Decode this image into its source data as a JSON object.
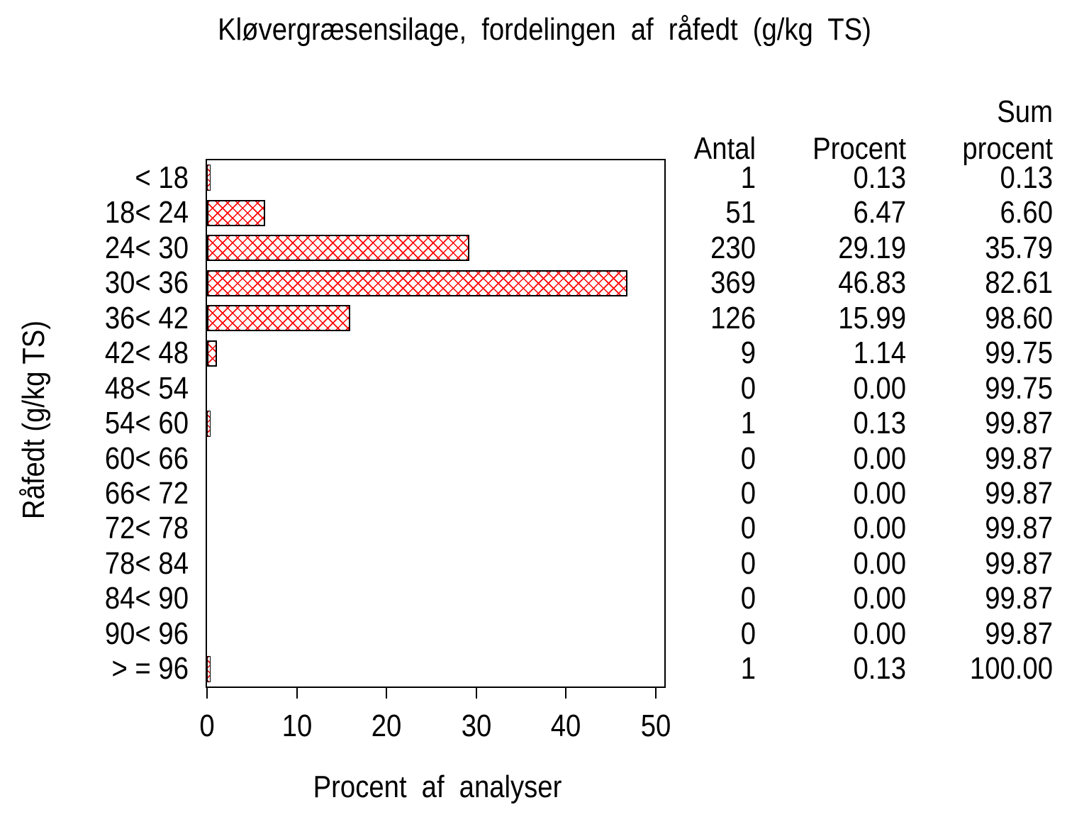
{
  "title": "Kløvergræsensilage,  fordelingen  af  råfedt  (g/kg  TS)",
  "xlabel": "Procent  af  analyser",
  "ylabel": "Råfedt  (g/kg  TS)",
  "table_headers": {
    "antal": "Antal",
    "procent": "Procent",
    "sum_line1": "Sum",
    "sum_line2": "procent"
  },
  "x_tick_labels": [
    "0",
    "10",
    "20",
    "30",
    "40",
    "50"
  ],
  "rows": [
    {
      "label": "< 18",
      "antal": "1",
      "procent": "0.13",
      "sum": "0.13",
      "pct": 0.13
    },
    {
      "label": "18< 24",
      "antal": "51",
      "procent": "6.47",
      "sum": "6.60",
      "pct": 6.47
    },
    {
      "label": "24< 30",
      "antal": "230",
      "procent": "29.19",
      "sum": "35.79",
      "pct": 29.19
    },
    {
      "label": "30< 36",
      "antal": "369",
      "procent": "46.83",
      "sum": "82.61",
      "pct": 46.83
    },
    {
      "label": "36< 42",
      "antal": "126",
      "procent": "15.99",
      "sum": "98.60",
      "pct": 15.99
    },
    {
      "label": "42< 48",
      "antal": "9",
      "procent": "1.14",
      "sum": "99.75",
      "pct": 1.14
    },
    {
      "label": "48< 54",
      "antal": "0",
      "procent": "0.00",
      "sum": "99.75",
      "pct": 0
    },
    {
      "label": "54< 60",
      "antal": "1",
      "procent": "0.13",
      "sum": "99.87",
      "pct": 0.13
    },
    {
      "label": "60< 66",
      "antal": "0",
      "procent": "0.00",
      "sum": "99.87",
      "pct": 0
    },
    {
      "label": "66< 72",
      "antal": "0",
      "procent": "0.00",
      "sum": "99.87",
      "pct": 0
    },
    {
      "label": "72< 78",
      "antal": "0",
      "procent": "0.00",
      "sum": "99.87",
      "pct": 0
    },
    {
      "label": "78< 84",
      "antal": "0",
      "procent": "0.00",
      "sum": "99.87",
      "pct": 0
    },
    {
      "label": "84< 90",
      "antal": "0",
      "procent": "0.00",
      "sum": "99.87",
      "pct": 0
    },
    {
      "label": "90< 96",
      "antal": "0",
      "procent": "0.00",
      "sum": "99.87",
      "pct": 0
    },
    {
      "label": "> = 96",
      "antal": "1",
      "procent": "0.13",
      "sum": "100.00",
      "pct": 0.13
    }
  ],
  "colors": {
    "hatch_red": "#ff0000",
    "frame": "#000000",
    "text": "#000000",
    "background": "#ffffff"
  },
  "chart_data": {
    "type": "bar",
    "orientation": "horizontal",
    "title": "Kløvergræsensilage, fordelingen af råfedt (g/kg TS)",
    "xlabel": "Procent af analyser",
    "ylabel": "Råfedt (g/kg TS)",
    "xlim": [
      0,
      50
    ],
    "x_ticks": [
      0,
      10,
      20,
      30,
      40,
      50
    ],
    "grid": false,
    "legend": false,
    "bar_style": "red diagonal crosshatch, black outline",
    "categories": [
      "< 18",
      "18< 24",
      "24< 30",
      "30< 36",
      "36< 42",
      "42< 48",
      "48< 54",
      "54< 60",
      "60< 66",
      "66< 72",
      "72< 78",
      "78< 84",
      "84< 90",
      "90< 96",
      "> = 96"
    ],
    "bar_values_pct": [
      0.13,
      6.47,
      29.19,
      46.83,
      15.99,
      1.14,
      0.0,
      0.13,
      0.0,
      0.0,
      0.0,
      0.0,
      0.0,
      0.0,
      0.13
    ],
    "series": [
      {
        "name": "Antal",
        "values": [
          1,
          51,
          230,
          369,
          126,
          9,
          0,
          1,
          0,
          0,
          0,
          0,
          0,
          0,
          1
        ]
      },
      {
        "name": "Procent",
        "values": [
          0.13,
          6.47,
          29.19,
          46.83,
          15.99,
          1.14,
          0.0,
          0.13,
          0.0,
          0.0,
          0.0,
          0.0,
          0.0,
          0.0,
          0.13
        ]
      },
      {
        "name": "Sum procent",
        "values": [
          0.13,
          6.6,
          35.79,
          82.61,
          98.6,
          99.75,
          99.75,
          99.87,
          99.87,
          99.87,
          99.87,
          99.87,
          99.87,
          99.87,
          100.0
        ]
      }
    ]
  }
}
